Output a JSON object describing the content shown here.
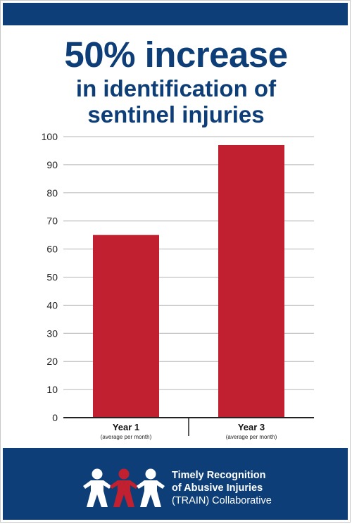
{
  "header": {
    "title_line1": "50% increase",
    "title_line2": "in identification of",
    "title_line3": "sentinel injuries"
  },
  "chart_data": {
    "type": "bar",
    "categories": [
      "Year 1",
      "Year 3"
    ],
    "category_sublabels": [
      "(average per month)",
      "(average per month)"
    ],
    "values": [
      65,
      97
    ],
    "ylim": [
      0,
      100
    ],
    "yticks": [
      0,
      10,
      20,
      30,
      40,
      50,
      60,
      70,
      80,
      90,
      100
    ],
    "grid": true,
    "bar_color": "#c0202f"
  },
  "footer": {
    "org_line1": "Timely Recognition",
    "org_line2": "of Abusive Injuries",
    "org_line3": "(TRAIN) Collaborative"
  },
  "colors": {
    "brand_blue": "#0e3e78",
    "brand_red": "#c0202f"
  }
}
